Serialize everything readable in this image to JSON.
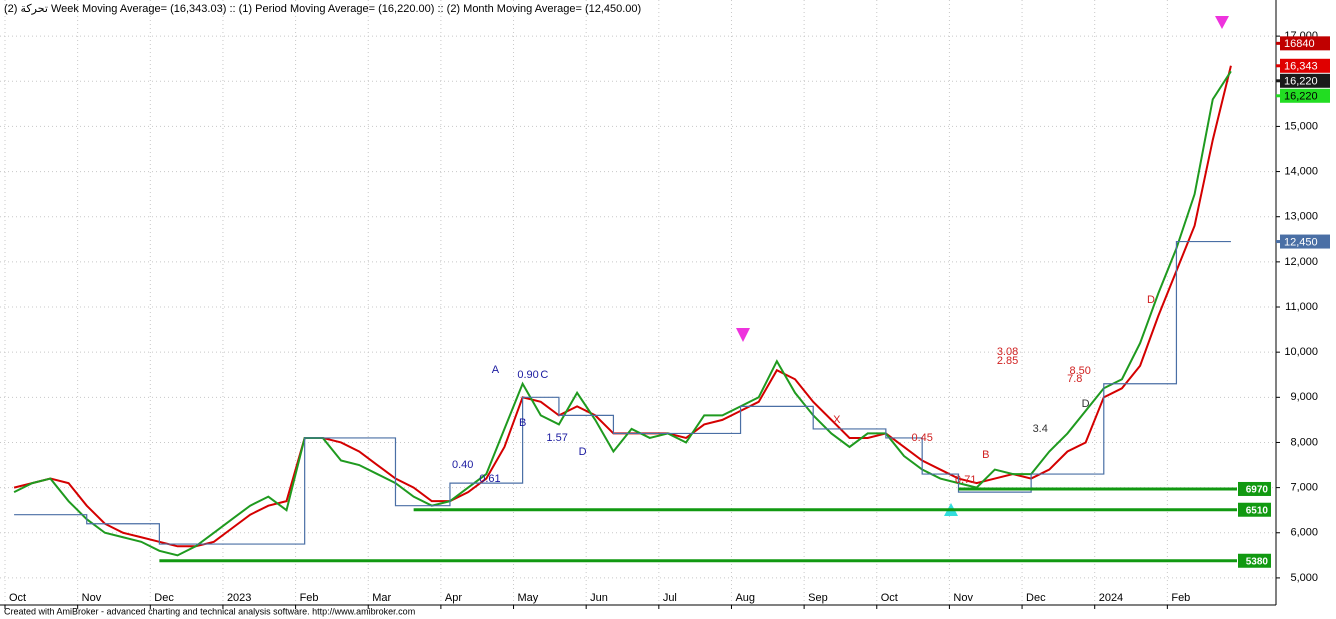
{
  "chart_data": {
    "type": "line",
    "title_prefix": "تحركة",
    "separator": "::",
    "footer": "Created with AmiBroker - advanced charting and technical analysis software. http://www.amibroker.com",
    "categories": [
      "Oct",
      null,
      null,
      null,
      "Nov",
      null,
      null,
      null,
      "Dec",
      null,
      null,
      null,
      "2023",
      null,
      null,
      null,
      "Feb",
      null,
      null,
      null,
      "Mar",
      null,
      null,
      null,
      "Apr",
      null,
      null,
      null,
      "May",
      null,
      null,
      null,
      "Jun",
      null,
      null,
      null,
      "Jul",
      null,
      null,
      null,
      "Aug",
      null,
      null,
      null,
      "Sep",
      null,
      null,
      null,
      "Oct",
      null,
      null,
      null,
      "Nov",
      null,
      null,
      null,
      "Dec",
      null,
      null,
      null,
      "2024",
      null,
      null,
      null,
      "Feb",
      null,
      null,
      null
    ],
    "series": [
      {
        "name": "(2) Week Moving Average= (16,343.03)",
        "color": "#d40000",
        "step": false,
        "values": [
          7000,
          7100,
          7200,
          7100,
          6600,
          6200,
          6000,
          5900,
          5800,
          5700,
          5700,
          5800,
          6100,
          6400,
          6600,
          6700,
          8100,
          8100,
          8000,
          7800,
          7500,
          7200,
          7000,
          6700,
          6700,
          6900,
          7200,
          7900,
          9000,
          8900,
          8600,
          8800,
          8600,
          8200,
          8200,
          8200,
          8200,
          8100,
          8400,
          8500,
          8700,
          8900,
          9600,
          9400,
          8900,
          8500,
          8100,
          8100,
          8200,
          7900,
          7600,
          7400,
          7200,
          7100,
          7200,
          7300,
          7200,
          7400,
          7800,
          8000,
          9000,
          9200,
          9700,
          10800,
          11800,
          12800,
          14700,
          16343
        ]
      },
      {
        "name": "(1) Period Moving Average= (16,220.00)",
        "color": "#1f9a1f",
        "step": false,
        "values": [
          6900,
          7100,
          7200,
          6700,
          6300,
          6000,
          5900,
          5800,
          5600,
          5500,
          5700,
          6000,
          6300,
          6600,
          6800,
          6500,
          8100,
          8100,
          7600,
          7500,
          7300,
          7100,
          6800,
          6600,
          6700,
          7000,
          7300,
          8300,
          9300,
          8600,
          8400,
          9100,
          8500,
          7800,
          8300,
          8100,
          8200,
          8000,
          8600,
          8600,
          8800,
          9000,
          9800,
          9100,
          8600,
          8200,
          7900,
          8200,
          8200,
          7700,
          7400,
          7200,
          7100,
          7000,
          7400,
          7300,
          7300,
          7800,
          8200,
          8700,
          9200,
          9400,
          10200,
          11300,
          12300,
          13500,
          15600,
          16220
        ]
      },
      {
        "name": "(2) Month Moving Average= (12,450.00)",
        "color": "#4a6fa5",
        "step": true,
        "values": [
          6400,
          6400,
          6400,
          6400,
          6200,
          6200,
          6200,
          6200,
          5750,
          5750,
          5750,
          5750,
          5750,
          5750,
          5750,
          5750,
          8100,
          8100,
          8100,
          8100,
          8100,
          6600,
          6600,
          6600,
          7100,
          7100,
          7100,
          7100,
          9000,
          9000,
          8600,
          8600,
          8600,
          8200,
          8200,
          8200,
          8200,
          8200,
          8200,
          8200,
          8800,
          8800,
          8800,
          8800,
          8300,
          8300,
          8300,
          8300,
          8100,
          8100,
          7300,
          7300,
          6900,
          6900,
          6900,
          6900,
          7300,
          7300,
          7300,
          7300,
          9300,
          9300,
          9300,
          9300,
          12450,
          12450,
          12450,
          12450
        ]
      }
    ],
    "ylim": [
      4400,
      17800
    ],
    "yticks": [
      {
        "value": 5000,
        "label": "5,000"
      },
      {
        "value": 6000,
        "label": "6,000"
      },
      {
        "value": 7000,
        "label": "7,000"
      },
      {
        "value": 8000,
        "label": "8,000"
      },
      {
        "value": 9000,
        "label": "9,000"
      },
      {
        "value": 10000,
        "label": "10,000"
      },
      {
        "value": 11000,
        "label": "11,000"
      },
      {
        "value": 12000,
        "label": "12,000"
      },
      {
        "value": 13000,
        "label": "13,000"
      },
      {
        "value": 14000,
        "label": "14,000"
      },
      {
        "value": 15000,
        "label": "15,000"
      },
      {
        "value": 16000,
        "label": "16,000"
      },
      {
        "value": 17000,
        "label": "17,000"
      }
    ],
    "grid": true,
    "levels": [
      {
        "value": 6970,
        "color": "#119911"
      },
      {
        "value": 6510,
        "color": "#119911"
      },
      {
        "value": 5380,
        "color": "#119911"
      }
    ],
    "price_tags": [
      {
        "value": 16840,
        "color": "#c00000"
      },
      {
        "value": 16343,
        "label": "16,343",
        "color": "#e00000"
      },
      {
        "value": 16220,
        "label": "16,220",
        "color": "#1a1a1a"
      },
      {
        "value": 16220,
        "label": "16,220",
        "color": "#22dd22"
      },
      {
        "value": 12450,
        "label": "12,450",
        "color": "#4a6fa5"
      }
    ],
    "annotations": [
      {
        "text": "A",
        "x": 26.5,
        "y": 9600,
        "color": "#1a1aa0"
      },
      {
        "text": "0.90",
        "x": 28.3,
        "y": 9490,
        "color": "#1a1aa0"
      },
      {
        "text": "C",
        "x": 29.2,
        "y": 9490,
        "color": "#1a1aa0"
      },
      {
        "text": "B",
        "x": 28,
        "y": 8430,
        "color": "#1a1aa0"
      },
      {
        "text": "0.40",
        "x": 24.7,
        "y": 7500,
        "color": "#1a1aa0"
      },
      {
        "text": "0.61",
        "x": 26.2,
        "y": 7190,
        "color": "#1a1aa0"
      },
      {
        "text": "1.57",
        "x": 29.9,
        "y": 8100,
        "color": "#1a1aa0"
      },
      {
        "text": "D",
        "x": 31.3,
        "y": 7790,
        "color": "#1a1aa0"
      },
      {
        "text": "X",
        "x": 45.3,
        "y": 8500,
        "color": "#d02020"
      },
      {
        "text": "0.45",
        "x": 50,
        "y": 8100,
        "color": "#d02020"
      },
      {
        "text": "3.08",
        "x": 54.7,
        "y": 10000,
        "color": "#d02020"
      },
      {
        "text": "2.85",
        "x": 54.7,
        "y": 9800,
        "color": "#d02020"
      },
      {
        "text": "8.50",
        "x": 58.7,
        "y": 9580,
        "color": "#d02020"
      },
      {
        "text": "7.8",
        "x": 58.4,
        "y": 9400,
        "color": "#d02020"
      },
      {
        "text": "B",
        "x": 53.5,
        "y": 7720,
        "color": "#d02020"
      },
      {
        "text": "0.71",
        "x": 52.4,
        "y": 7170,
        "color": "#d02020"
      },
      {
        "text": "3.4",
        "x": 56.5,
        "y": 8300,
        "color": "#333333"
      },
      {
        "text": "D",
        "x": 59,
        "y": 8850,
        "color": "#333333"
      },
      {
        "text": "D",
        "x": 62.6,
        "y": 11150,
        "color": "#d02020"
      }
    ]
  }
}
